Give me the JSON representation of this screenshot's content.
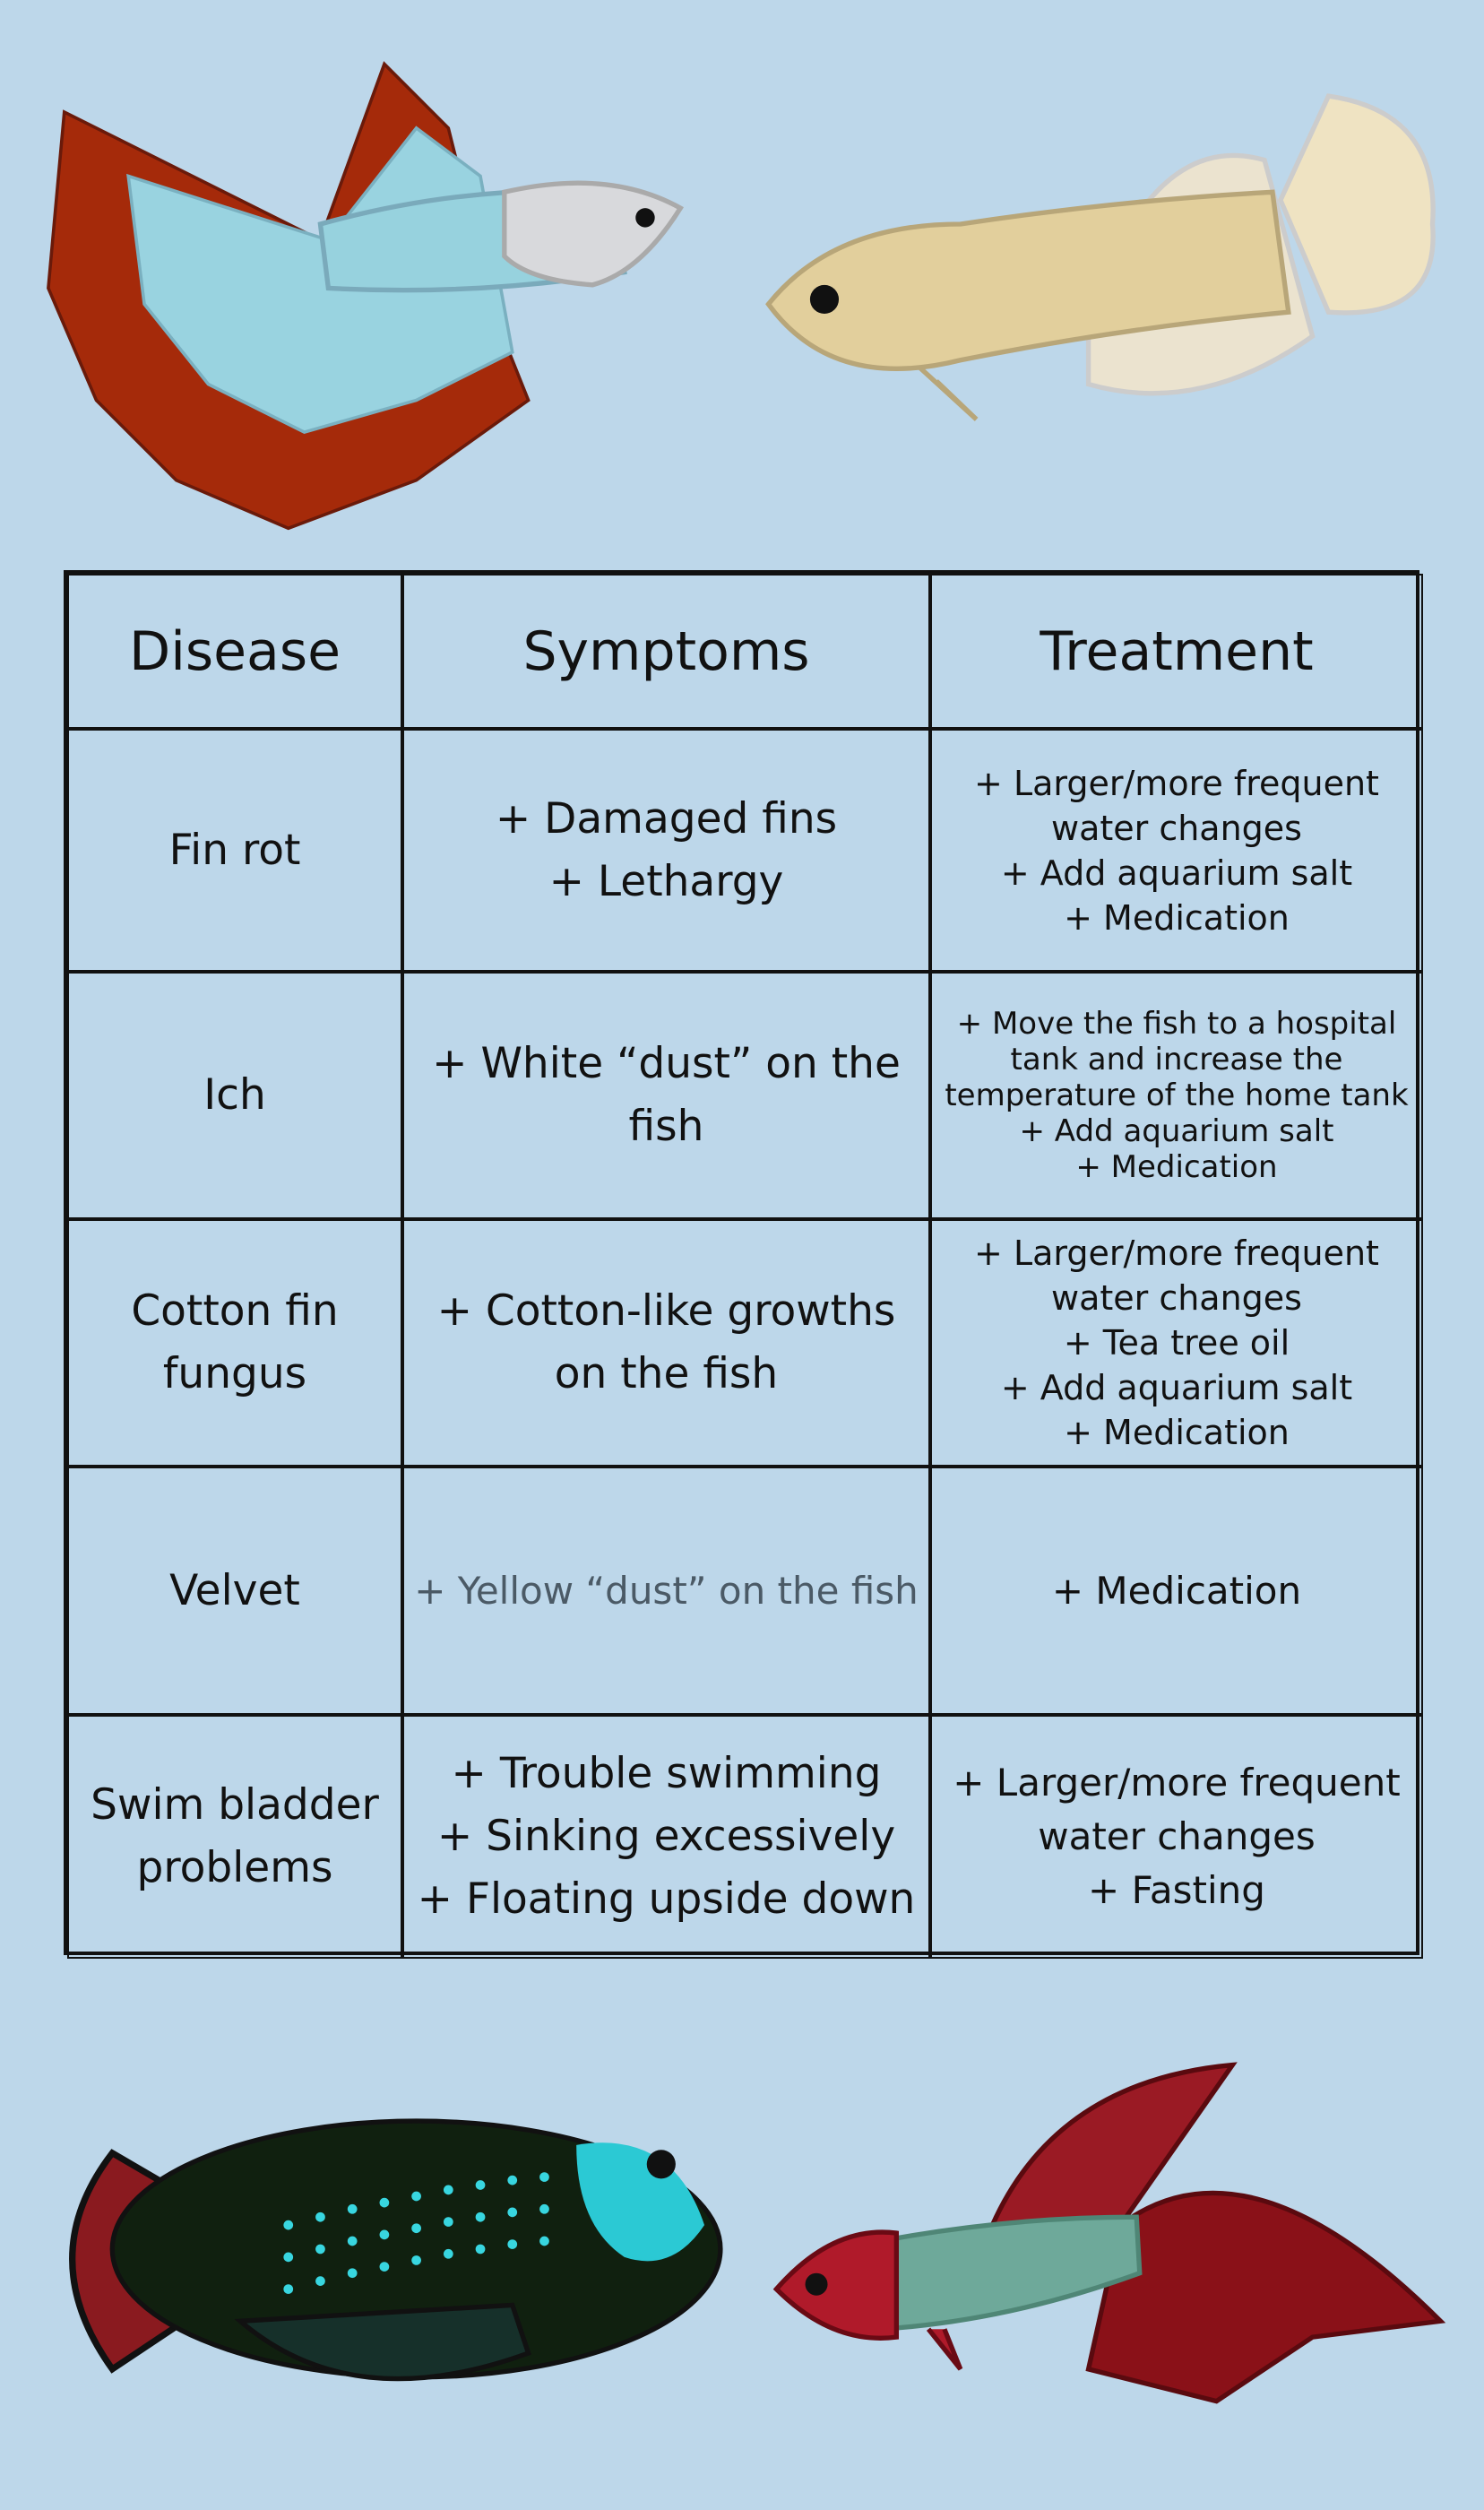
{
  "table": {
    "header": [
      "Disease",
      "Symptoms",
      "Treatment"
    ],
    "rows": [
      {
        "disease": [
          "Fin rot"
        ],
        "symptoms": [
          "+ Damaged fins",
          "+ Lethargy"
        ],
        "treatment": [
          "+ Larger/more frequent",
          "water changes",
          "+ Add aquarium salt",
          "+ Medication"
        ]
      },
      {
        "disease": [
          "Ich"
        ],
        "symptoms": [
          "+ White “dust” on the fish"
        ],
        "treatment": [
          "+ Move the fish to a hospital",
          "tank and increase the",
          "temperature of the home tank",
          "+ Add aquarium salt",
          "+ Medication"
        ]
      },
      {
        "disease": [
          "Cotton fin",
          "fungus"
        ],
        "symptoms": [
          "+ Cotton-like growths",
          "on the fish"
        ],
        "treatment": [
          "+ Larger/more frequent",
          "water changes",
          "+ Tea tree oil",
          "+ Add aquarium salt",
          "+ Medication"
        ]
      },
      {
        "disease": [
          "Velvet"
        ],
        "symptoms": [
          "+ Yellow “dust” on the fish"
        ],
        "treatment": [
          "+ Medication"
        ]
      },
      {
        "disease": [
          "Swim bladder",
          "problems"
        ],
        "symptoms": [
          "+ Trouble swimming",
          "+ Sinking excessively",
          "+ Floating upside down"
        ],
        "treatment": [
          "+ Larger/more frequent",
          "water changes",
          "+ Fasting"
        ]
      }
    ]
  }
}
